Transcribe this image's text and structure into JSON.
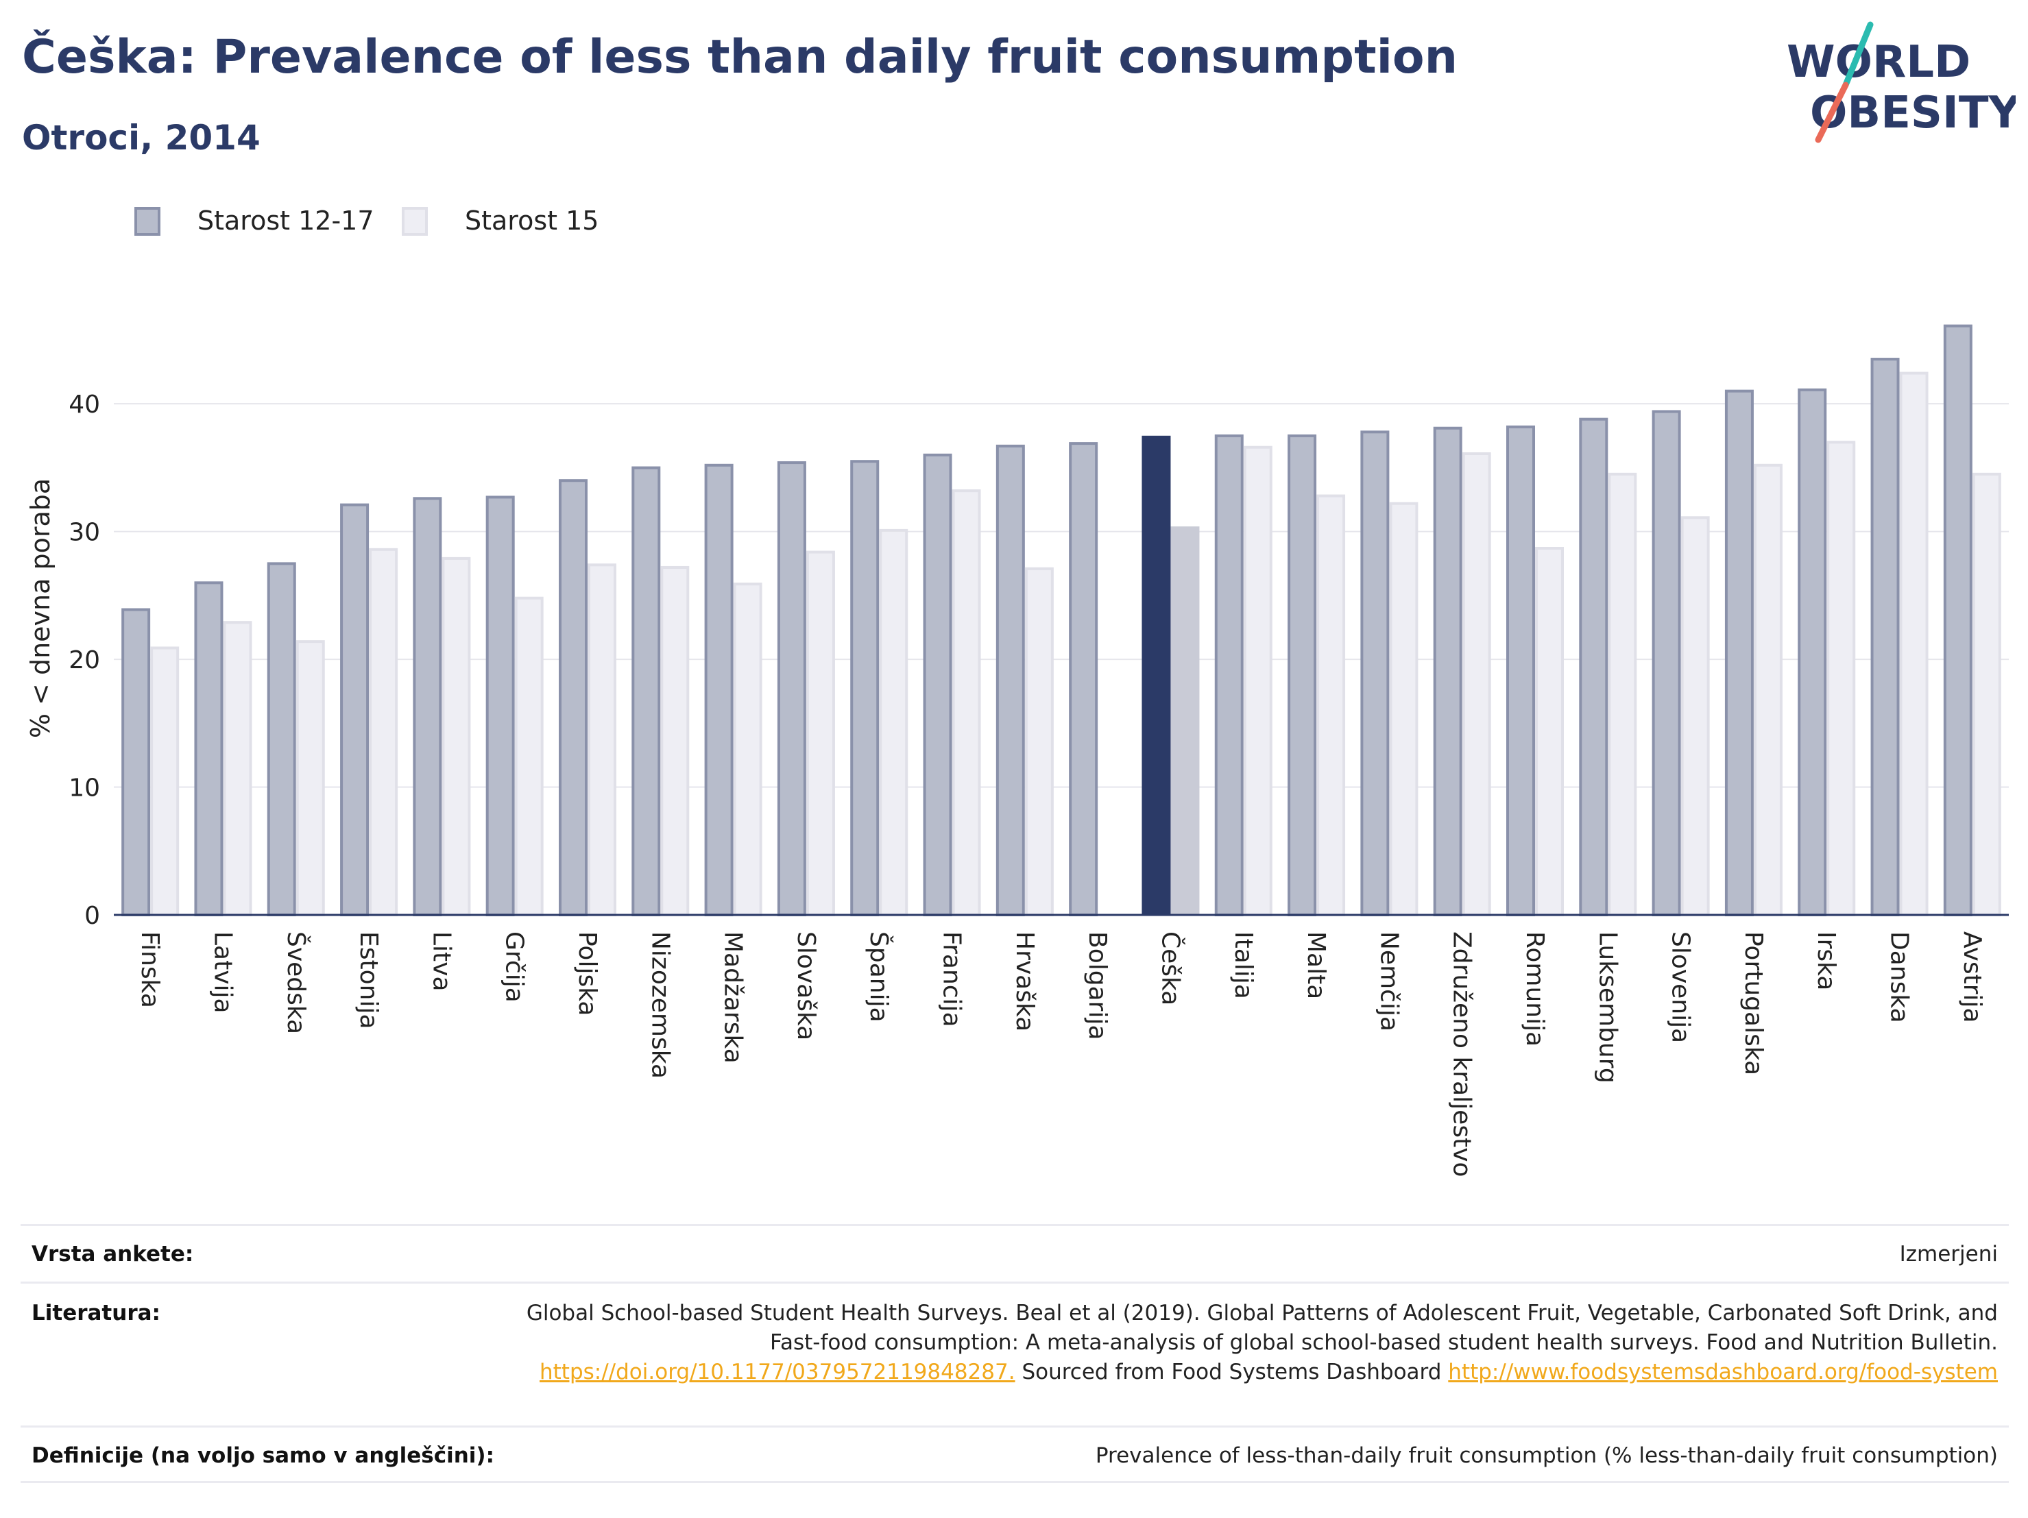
{
  "header": {
    "title": "Češka: Prevalence of less than daily fruit consumption",
    "subtitle": "Otroci, 2014"
  },
  "logo": {
    "line1": "WORLD",
    "line2": "OBESITY"
  },
  "legend": {
    "items": [
      {
        "label": "Starost 12-17",
        "color": "#b7bccb",
        "border": "#8a91aa"
      },
      {
        "label": "Starost 15",
        "color": "#eeeef4",
        "border": "#e0e0e8"
      }
    ]
  },
  "colors": {
    "highlight_primary": "#2b3a67",
    "highlight_secondary": "#c9cbd6",
    "axis": "#2b3a67",
    "grid": "#e6e6ec"
  },
  "chart_data": {
    "type": "bar",
    "ylabel": "% < dnevna poraba",
    "ylim": [
      0,
      48
    ],
    "yticks": [
      0,
      10,
      20,
      30,
      40
    ],
    "grid": true,
    "legend_position": "top-left",
    "highlight": "Češka",
    "categories": [
      "Finska",
      "Latvija",
      "Švedska",
      "Estonija",
      "Litva",
      "Grčija",
      "Poljska",
      "Nizozemska",
      "Madžarska",
      "Slovaška",
      "Španija",
      "Francija",
      "Hrvaška",
      "Bolgarija",
      "Češka",
      "Italija",
      "Malta",
      "Nemčija",
      "Združeno kraljestvo",
      "Romunija",
      "Luksemburg",
      "Slovenija",
      "Portugalska",
      "Irska",
      "Danska",
      "Avstrija"
    ],
    "series": [
      {
        "name": "Starost 12-17",
        "values": [
          24.0,
          26.1,
          27.6,
          32.2,
          32.7,
          32.8,
          34.1,
          35.1,
          35.3,
          35.5,
          35.6,
          36.1,
          36.8,
          37.0,
          37.5,
          37.6,
          37.6,
          37.9,
          38.2,
          38.3,
          38.9,
          39.5,
          41.1,
          41.2,
          43.6,
          46.2
        ]
      },
      {
        "name": "Starost 15",
        "values": [
          21.0,
          23.0,
          21.5,
          28.7,
          28.0,
          24.9,
          27.5,
          27.3,
          26.0,
          28.5,
          30.2,
          33.3,
          27.2,
          null,
          30.4,
          36.7,
          32.9,
          32.3,
          36.2,
          28.8,
          34.6,
          31.2,
          35.3,
          37.1,
          42.5,
          34.6
        ]
      }
    ]
  },
  "footer": {
    "survey_label": "Vrsta ankete:",
    "survey_value": "Izmerjeni",
    "references_label": "Literatura:",
    "references_text_1": "Global School-based Student Health Surveys. Beal et al (2019). Global Patterns of Adolescent Fruit, Vegetable, Carbonated Soft Drink, and Fast-food consumption: A meta-analysis of global school-based student health surveys. Food and Nutrition Bulletin.",
    "references_link_1": "https://doi.org/10.1177/0379572119848287.",
    "references_text_2": "Sourced from Food Systems Dashboard",
    "references_link_2": "http://www.foodsystemsdashboard.org/food-system",
    "definitions_label": "Definicije (na voljo samo v angleščini):",
    "definitions_value": "Prevalence of less-than-daily fruit consumption (% less-than-daily fruit consumption)"
  }
}
